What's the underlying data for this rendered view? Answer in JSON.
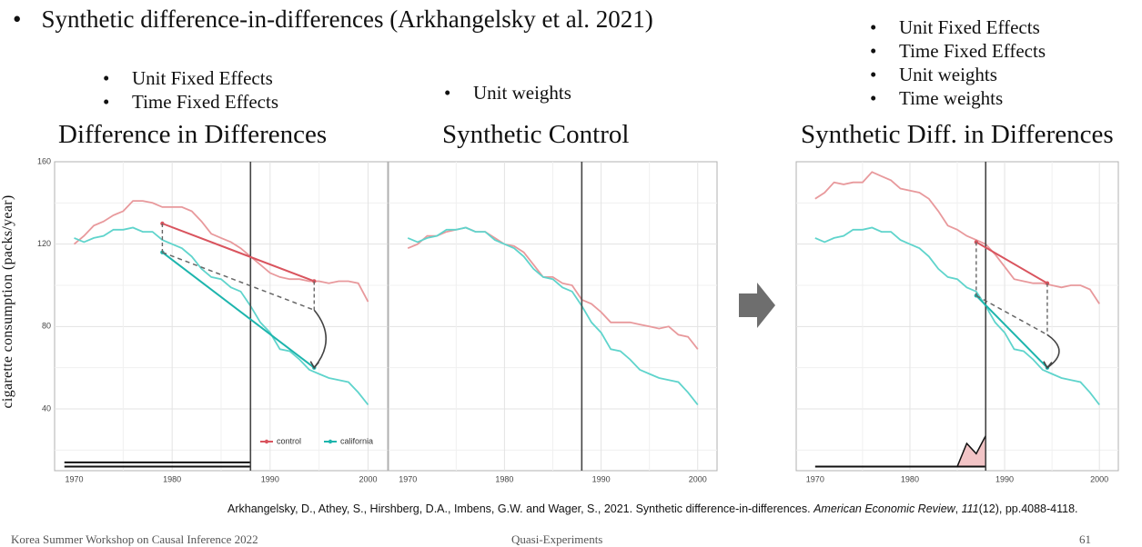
{
  "header": {
    "bullet": "•",
    "title": "Synthetic difference-in-differences (Arkhangelsky et al. 2021)"
  },
  "did_features": [
    "Unit Fixed Effects",
    "Time Fixed Effects"
  ],
  "sc_features": [
    "Unit weights"
  ],
  "sdid_features": [
    "Unit Fixed Effects",
    "Time Fixed Effects",
    "Unit weights",
    "Time weights"
  ],
  "panel_titles": {
    "did": "Difference in Differences",
    "sc": "Synthetic Control",
    "sdid": "Synthetic Diff. in Differences"
  },
  "y_axis_label": "cigarette consumption (packs/year)",
  "citation": {
    "authors": "Arkhangelsky, D., Athey, S., Hirshberg, D.A., Imbens, G.W. and Wager, S., 2021. Synthetic difference-in-differences. ",
    "journal": "American Economic Review",
    "volume": "111",
    "issue_pages": "(12), pp.4088-4118."
  },
  "footer": {
    "left": "Korea Summer Workshop on Causal Inference 2022",
    "center": "Quasi-Experiments",
    "page": "61"
  },
  "colors": {
    "control": "#e8999c",
    "california": "#5fd4cc",
    "control_line": "#d9545e",
    "california_line": "#1db5ad",
    "arrow": "#666666",
    "weights_fill": "#f2c4c6"
  },
  "chart_data": [
    {
      "type": "line",
      "title": "Difference in Differences",
      "ylabel": "cigarette consumption (packs/year)",
      "xlim": [
        1968,
        2002
      ],
      "ylim": [
        10,
        160
      ],
      "x_ticks": [
        1970,
        1980,
        1990,
        2000
      ],
      "y_ticks": [
        40,
        80,
        120,
        160
      ],
      "treatment_year": 1988,
      "legend": {
        "position": "bottom-right",
        "entries": [
          "control",
          "california"
        ]
      },
      "series": [
        {
          "name": "control",
          "x": [
            1970,
            1971,
            1972,
            1973,
            1974,
            1975,
            1976,
            1977,
            1978,
            1979,
            1980,
            1981,
            1982,
            1983,
            1984,
            1985,
            1986,
            1987,
            1988,
            1989,
            1990,
            1991,
            1992,
            1993,
            1994,
            1995,
            1996,
            1997,
            1998,
            1999,
            2000
          ],
          "values": [
            120,
            124,
            129,
            131,
            134,
            136,
            141,
            141,
            140,
            138,
            138,
            138,
            136,
            131,
            125,
            123,
            121,
            118,
            114,
            110,
            106,
            104,
            103,
            103,
            102,
            102,
            101,
            102,
            102,
            101,
            92
          ]
        },
        {
          "name": "california",
          "x": [
            1970,
            1971,
            1972,
            1973,
            1974,
            1975,
            1976,
            1977,
            1978,
            1979,
            1980,
            1981,
            1982,
            1983,
            1984,
            1985,
            1986,
            1987,
            1988,
            1989,
            1990,
            1991,
            1992,
            1993,
            1994,
            1995,
            1996,
            1997,
            1998,
            1999,
            2000
          ],
          "values": [
            123,
            121,
            123,
            124,
            127,
            127,
            128,
            126,
            126,
            122,
            120,
            118,
            114,
            108,
            104,
            103,
            99,
            97,
            90,
            82,
            77,
            69,
            68,
            64,
            59,
            57,
            55,
            54,
            53,
            48,
            42
          ]
        }
      ],
      "segments": [
        {
          "series": "control",
          "from": [
            1979,
            130
          ],
          "to": [
            1994.5,
            102
          ]
        },
        {
          "series": "california",
          "from": [
            1979,
            116
          ],
          "to": [
            1994.5,
            60
          ]
        },
        {
          "series": "counterfactual",
          "from": [
            1979,
            116
          ],
          "to": [
            1994.5,
            88
          ],
          "dashed": true
        }
      ],
      "weights": {
        "unit": "flat",
        "time": "flat"
      }
    },
    {
      "type": "line",
      "title": "Synthetic Control",
      "xlim": [
        1968,
        2002
      ],
      "ylim": [
        10,
        160
      ],
      "x_ticks": [
        1970,
        1980,
        1990,
        2000
      ],
      "treatment_year": 1988,
      "series": [
        {
          "name": "control",
          "x": [
            1970,
            1971,
            1972,
            1973,
            1974,
            1975,
            1976,
            1977,
            1978,
            1979,
            1980,
            1981,
            1982,
            1983,
            1984,
            1985,
            1986,
            1987,
            1988,
            1989,
            1990,
            1991,
            1992,
            1993,
            1994,
            1995,
            1996,
            1997,
            1998,
            1999,
            2000
          ],
          "values": [
            118,
            120,
            124,
            124,
            126,
            127,
            128,
            126,
            126,
            123,
            120,
            119,
            116,
            110,
            104,
            104,
            101,
            100,
            93,
            91,
            87,
            82,
            82,
            82,
            81,
            80,
            79,
            80,
            76,
            75,
            69
          ]
        },
        {
          "name": "california",
          "x": [
            1970,
            1971,
            1972,
            1973,
            1974,
            1975,
            1976,
            1977,
            1978,
            1979,
            1980,
            1981,
            1982,
            1983,
            1984,
            1985,
            1986,
            1987,
            1988,
            1989,
            1990,
            1991,
            1992,
            1993,
            1994,
            1995,
            1996,
            1997,
            1998,
            1999,
            2000
          ],
          "values": [
            123,
            121,
            123,
            124,
            127,
            127,
            128,
            126,
            126,
            122,
            120,
            118,
            114,
            108,
            104,
            103,
            99,
            97,
            90,
            82,
            77,
            69,
            68,
            64,
            59,
            57,
            55,
            54,
            53,
            48,
            42
          ]
        }
      ]
    },
    {
      "type": "line",
      "title": "Synthetic Diff. in Differences",
      "xlim": [
        1968,
        2002
      ],
      "ylim": [
        10,
        160
      ],
      "x_ticks": [
        1970,
        1980,
        1990,
        2000
      ],
      "treatment_year": 1988,
      "series": [
        {
          "name": "control",
          "x": [
            1970,
            1971,
            1972,
            1973,
            1974,
            1975,
            1976,
            1977,
            1978,
            1979,
            1980,
            1981,
            1982,
            1983,
            1984,
            1985,
            1986,
            1987,
            1988,
            1989,
            1990,
            1991,
            1992,
            1993,
            1994,
            1995,
            1996,
            1997,
            1998,
            1999,
            2000
          ],
          "values": [
            142,
            145,
            150,
            149,
            150,
            150,
            155,
            153,
            151,
            147,
            146,
            145,
            142,
            136,
            129,
            127,
            124,
            122,
            120,
            115,
            109,
            103,
            102,
            101,
            101,
            100,
            99,
            100,
            100,
            98,
            91
          ]
        },
        {
          "name": "california",
          "x": [
            1970,
            1971,
            1972,
            1973,
            1974,
            1975,
            1976,
            1977,
            1978,
            1979,
            1980,
            1981,
            1982,
            1983,
            1984,
            1985,
            1986,
            1987,
            1988,
            1989,
            1990,
            1991,
            1992,
            1993,
            1994,
            1995,
            1996,
            1997,
            1998,
            1999,
            2000
          ],
          "values": [
            123,
            121,
            123,
            124,
            127,
            127,
            128,
            126,
            126,
            122,
            120,
            118,
            114,
            108,
            104,
            103,
            99,
            97,
            90,
            82,
            77,
            69,
            68,
            64,
            59,
            57,
            55,
            54,
            53,
            48,
            42
          ]
        }
      ],
      "segments": [
        {
          "series": "control",
          "from": [
            1987,
            121
          ],
          "to": [
            1994.5,
            101
          ]
        },
        {
          "series": "california",
          "from": [
            1987,
            95
          ],
          "to": [
            1994.5,
            60
          ]
        },
        {
          "series": "counterfactual",
          "from": [
            1987,
            95
          ],
          "to": [
            1994.5,
            76
          ],
          "dashed": true
        }
      ],
      "time_weights": {
        "x": [
          1970,
          1985,
          1986,
          1987,
          1988
        ],
        "values": [
          0,
          0,
          0.45,
          0.25,
          0.6
        ]
      }
    }
  ]
}
